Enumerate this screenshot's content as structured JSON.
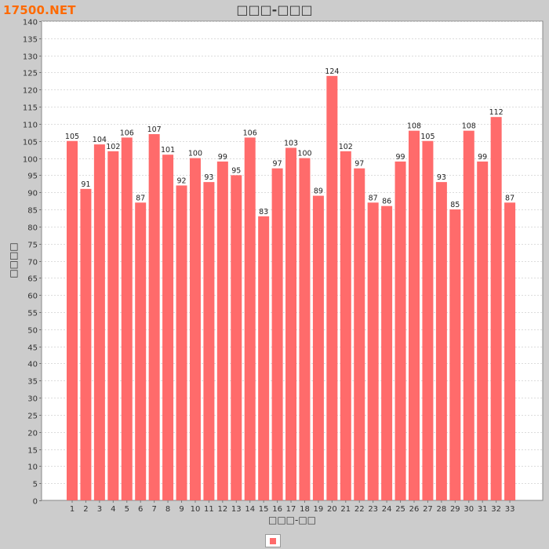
{
  "logo": "17500.NET",
  "chart_data": {
    "type": "bar",
    "title": "□□□-□□□",
    "xlabel": "□□□-□□",
    "ylabel": "□□□□",
    "categories": [
      "1",
      "2",
      "3",
      "4",
      "5",
      "6",
      "7",
      "8",
      "9",
      "10",
      "11",
      "12",
      "13",
      "14",
      "15",
      "16",
      "17",
      "18",
      "19",
      "20",
      "21",
      "22",
      "23",
      "24",
      "25",
      "26",
      "27",
      "28",
      "29",
      "30",
      "31",
      "32",
      "33"
    ],
    "series": [
      {
        "values": [
          105,
          91,
          104,
          102,
          106,
          87,
          107,
          101,
          92,
          100,
          93,
          99,
          95,
          106,
          83,
          97,
          103,
          100,
          89,
          124,
          102,
          97,
          87,
          86,
          99,
          108,
          105,
          93,
          85,
          108,
          99,
          112,
          87
        ],
        "color": "#ff6b6b"
      }
    ],
    "ylim": [
      0,
      140
    ],
    "yticks": [
      0,
      5,
      10,
      15,
      20,
      25,
      30,
      35,
      40,
      45,
      50,
      55,
      60,
      65,
      70,
      75,
      80,
      85,
      90,
      95,
      100,
      105,
      110,
      115,
      120,
      125,
      130,
      135,
      140
    ],
    "grid": true,
    "legend": "bottom"
  }
}
